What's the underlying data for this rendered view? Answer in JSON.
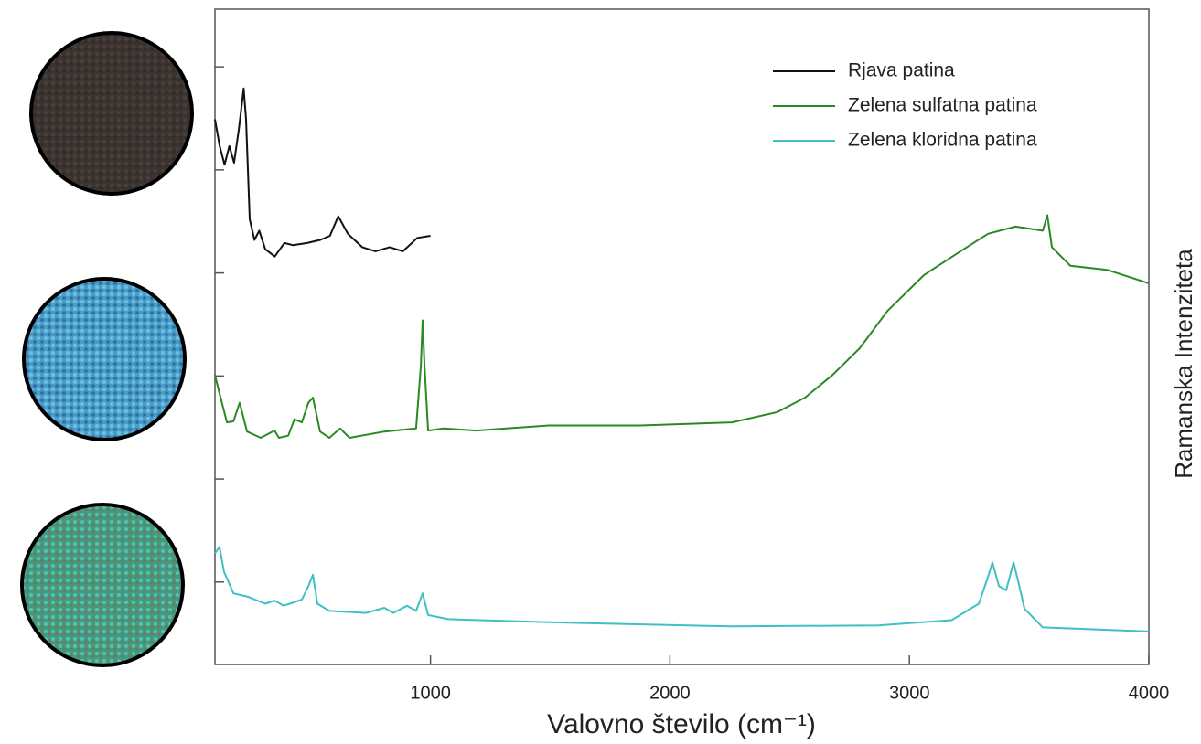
{
  "chart_data": {
    "type": "line",
    "x_label": "Valovno število (cm⁻¹)",
    "y_label": "Ramanska Intenziteta",
    "xlim": [
      100,
      4000
    ],
    "xticks": [
      1000,
      2000,
      3000,
      4000
    ],
    "ylim": [
      -0.8,
      5.56
    ],
    "yticks": [
      0,
      1,
      2,
      3,
      4,
      5
    ],
    "legend": "upper right",
    "series": [
      {
        "name": "Rjava patina",
        "color": "#111111",
        "x": [
          100,
          120,
          140,
          160,
          180,
          200,
          220,
          230,
          245,
          265,
          285,
          310,
          350,
          390,
          425,
          485,
          540,
          580,
          615,
          655,
          715,
          770,
          830,
          885,
          945,
          1000
        ],
        "values": [
          4.49,
          4.23,
          4.05,
          4.23,
          4.07,
          4.4,
          4.79,
          4.49,
          3.52,
          3.32,
          3.41,
          3.23,
          3.16,
          3.29,
          3.27,
          3.29,
          3.32,
          3.36,
          3.55,
          3.38,
          3.25,
          3.21,
          3.25,
          3.21,
          3.34,
          3.36
        ]
      },
      {
        "name": "Zelena sulfatna patina",
        "color": "#2a8a22",
        "x": [
          100,
          119,
          150,
          177,
          203,
          234,
          291,
          349,
          367,
          406,
          432,
          463,
          490,
          509,
          539,
          578,
          623,
          662,
          807,
          940,
          960,
          967,
          975,
          990,
          1055,
          1189,
          1494,
          1876,
          2258,
          2449,
          2564,
          2679,
          2793,
          2908,
          3061,
          3213,
          3328,
          3443,
          3557,
          3576,
          3595,
          3672,
          3825,
          4000
        ],
        "values": [
          2.01,
          1.83,
          1.55,
          1.56,
          1.74,
          1.46,
          1.4,
          1.47,
          1.4,
          1.42,
          1.58,
          1.55,
          1.74,
          1.79,
          1.46,
          1.4,
          1.49,
          1.4,
          1.46,
          1.49,
          2.1,
          2.54,
          2.1,
          1.47,
          1.49,
          1.47,
          1.52,
          1.52,
          1.55,
          1.65,
          1.79,
          2.01,
          2.27,
          2.63,
          2.98,
          3.21,
          3.38,
          3.45,
          3.41,
          3.56,
          3.25,
          3.07,
          3.03,
          2.9
        ]
      },
      {
        "name": "Zelena kloridna patina",
        "color": "#3ec0c4",
        "x": [
          100,
          119,
          138,
          177,
          234,
          310,
          349,
          387,
          463,
          490,
          509,
          528,
          578,
          730,
          807,
          845,
          902,
          940,
          967,
          990,
          1074,
          1494,
          2258,
          2870,
          3176,
          3290,
          3328,
          3347,
          3374,
          3404,
          3435,
          3450,
          3481,
          3557,
          4000
        ],
        "values": [
          0.28,
          0.34,
          0.1,
          -0.11,
          -0.14,
          -0.21,
          -0.18,
          -0.23,
          -0.17,
          -0.04,
          0.07,
          -0.21,
          -0.28,
          -0.3,
          -0.25,
          -0.3,
          -0.23,
          -0.28,
          -0.11,
          -0.32,
          -0.36,
          -0.39,
          -0.43,
          -0.42,
          -0.37,
          -0.21,
          0.05,
          0.19,
          -0.04,
          -0.08,
          0.19,
          0.05,
          -0.26,
          -0.44,
          -0.48
        ]
      }
    ]
  }
}
